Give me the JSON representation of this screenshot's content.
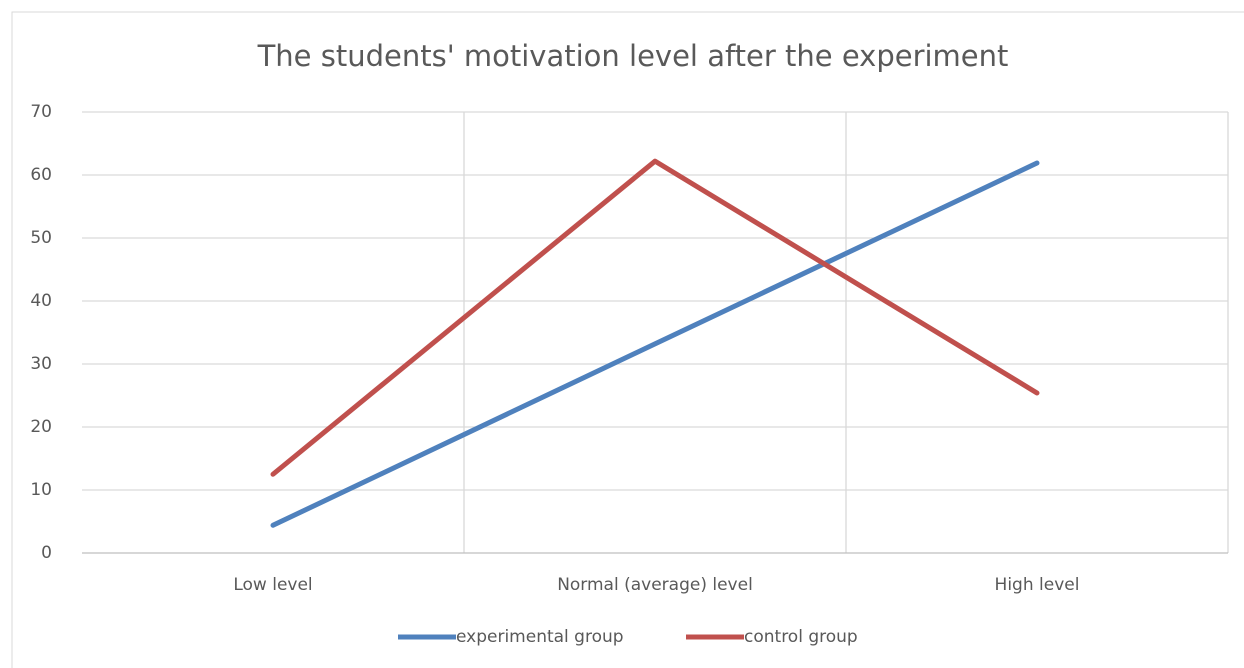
{
  "chart_data": {
    "type": "line",
    "title": "The students' motivation level  after the experiment",
    "categories": [
      "Low level",
      "Normal (average) level",
      "High level"
    ],
    "series": [
      {
        "name": "experimental group",
        "color": "#4f81bd",
        "values": [
          4.4,
          33.2,
          61.9
        ]
      },
      {
        "name": "control group",
        "color": "#c0504d",
        "values": [
          12.5,
          62.2,
          25.4
        ]
      }
    ],
    "ylim": [
      0,
      70
    ],
    "yticks": [
      0,
      10,
      20,
      30,
      40,
      50,
      60,
      70
    ],
    "grid": true,
    "legend": "bottom"
  }
}
